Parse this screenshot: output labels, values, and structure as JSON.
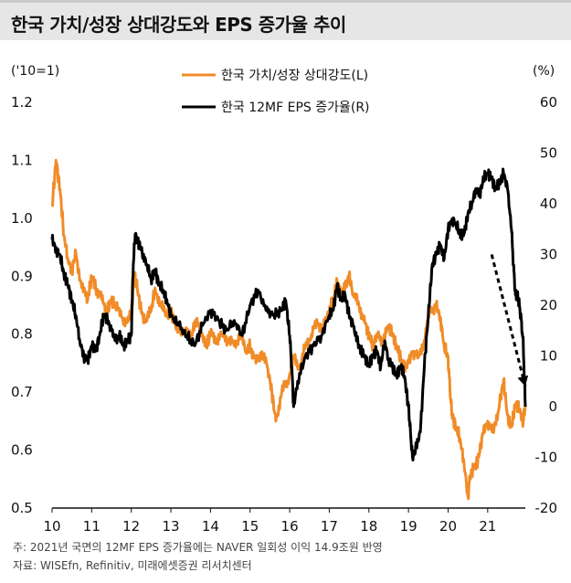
{
  "header": {
    "title": "한국 가치/성장 상대강도와 EPS 증가율 추이"
  },
  "units": {
    "left": "('10=1)",
    "right": "(%)"
  },
  "footnotes": {
    "note": "주: 2021년 국면의 12MF EPS 증가율에는 NAVER 일회성 이익 14.9조원 반영",
    "source": "자료: WISEfn, Refinitiv, 미래에셋증권 리서치센터"
  },
  "chart_data": {
    "type": "line",
    "title": "한국 가치/성장 상대강도와 EPS 증가율 추이",
    "x_tick_labels": [
      "10",
      "11",
      "12",
      "13",
      "14",
      "15",
      "16",
      "17",
      "18",
      "19",
      "20",
      "21"
    ],
    "x_range": [
      2010.0,
      2021.95
    ],
    "y_left": {
      "label": "('10=1)",
      "range": [
        0.5,
        1.2
      ],
      "ticks": [
        "1.2",
        "1.1",
        "1.0",
        "0.9",
        "0.8",
        "0.7",
        "0.6",
        "0.5"
      ]
    },
    "y_right": {
      "label": "(%)",
      "range": [
        -20,
        60
      ],
      "ticks": [
        "60",
        "50",
        "40",
        "30",
        "20",
        "10",
        "0",
        "-10",
        "-20"
      ]
    },
    "colors": {
      "value_growth": "#f08c28",
      "eps_growth": "#000000",
      "arrow": "#000000"
    },
    "series": [
      {
        "name": "한국 가치/성장 상대강도(L)",
        "axis": "left",
        "x": [
          2010.0,
          2010.1,
          2010.2,
          2010.3,
          2010.4,
          2010.5,
          2010.6,
          2010.75,
          2010.9,
          2011.0,
          2011.1,
          2011.25,
          2011.4,
          2011.5,
          2011.6,
          2011.75,
          2011.9,
          2012.0,
          2012.08,
          2012.15,
          2012.25,
          2012.35,
          2012.5,
          2012.6,
          2012.75,
          2012.9,
          2013.0,
          2013.1,
          2013.25,
          2013.4,
          2013.5,
          2013.6,
          2013.75,
          2013.9,
          2014.0,
          2014.15,
          2014.3,
          2014.45,
          2014.6,
          2014.75,
          2014.9,
          2015.0,
          2015.15,
          2015.3,
          2015.45,
          2015.55,
          2015.65,
          2015.8,
          2015.95,
          2016.1,
          2016.25,
          2016.4,
          2016.55,
          2016.7,
          2016.85,
          2017.0,
          2017.1,
          2017.2,
          2017.3,
          2017.4,
          2017.5,
          2017.6,
          2017.75,
          2017.9,
          2018.0,
          2018.1,
          2018.2,
          2018.35,
          2018.5,
          2018.6,
          2018.7,
          2018.8,
          2018.9,
          2019.0,
          2019.1,
          2019.25,
          2019.4,
          2019.55,
          2019.7,
          2019.8,
          2019.9,
          2020.0,
          2020.05,
          2020.1,
          2020.2,
          2020.3,
          2020.4,
          2020.5,
          2020.55,
          2020.65,
          2020.75,
          2020.85,
          2021.0,
          2021.15,
          2021.3,
          2021.4,
          2021.5,
          2021.6,
          2021.7,
          2021.8,
          2021.9,
          2021.95
        ],
        "values": [
          1.02,
          1.1,
          1.05,
          0.97,
          0.93,
          0.91,
          0.94,
          0.88,
          0.86,
          0.9,
          0.88,
          0.86,
          0.84,
          0.86,
          0.85,
          0.83,
          0.82,
          0.84,
          0.9,
          0.88,
          0.84,
          0.82,
          0.84,
          0.88,
          0.85,
          0.83,
          0.84,
          0.82,
          0.8,
          0.81,
          0.79,
          0.82,
          0.81,
          0.78,
          0.8,
          0.79,
          0.8,
          0.79,
          0.78,
          0.8,
          0.77,
          0.78,
          0.75,
          0.77,
          0.74,
          0.7,
          0.65,
          0.7,
          0.72,
          0.76,
          0.74,
          0.78,
          0.8,
          0.82,
          0.81,
          0.84,
          0.86,
          0.89,
          0.87,
          0.88,
          0.9,
          0.87,
          0.85,
          0.82,
          0.8,
          0.78,
          0.8,
          0.79,
          0.81,
          0.8,
          0.78,
          0.76,
          0.74,
          0.75,
          0.77,
          0.76,
          0.79,
          0.84,
          0.85,
          0.83,
          0.78,
          0.76,
          0.7,
          0.66,
          0.64,
          0.62,
          0.58,
          0.52,
          0.55,
          0.57,
          0.58,
          0.62,
          0.65,
          0.63,
          0.68,
          0.72,
          0.66,
          0.64,
          0.68,
          0.67,
          0.65,
          0.68
        ]
      },
      {
        "name": "한국 12MF EPS 증가율(R)",
        "axis": "right",
        "x": [
          2010.0,
          2010.1,
          2010.2,
          2010.3,
          2010.4,
          2010.5,
          2010.6,
          2010.7,
          2010.8,
          2010.9,
          2011.0,
          2011.1,
          2011.2,
          2011.3,
          2011.4,
          2011.5,
          2011.6,
          2011.7,
          2011.8,
          2011.9,
          2012.0,
          2012.05,
          2012.1,
          2012.2,
          2012.3,
          2012.4,
          2012.5,
          2012.6,
          2012.7,
          2012.8,
          2012.9,
          2013.0,
          2013.2,
          2013.4,
          2013.6,
          2013.8,
          2014.0,
          2014.2,
          2014.4,
          2014.6,
          2014.8,
          2015.0,
          2015.2,
          2015.4,
          2015.6,
          2015.8,
          2015.9,
          2016.0,
          2016.05,
          2016.1,
          2016.2,
          2016.4,
          2016.6,
          2016.8,
          2017.0,
          2017.1,
          2017.2,
          2017.3,
          2017.4,
          2017.5,
          2017.6,
          2017.7,
          2017.8,
          2017.9,
          2018.0,
          2018.1,
          2018.2,
          2018.3,
          2018.4,
          2018.5,
          2018.6,
          2018.7,
          2018.8,
          2018.9,
          2019.0,
          2019.05,
          2019.1,
          2019.2,
          2019.3,
          2019.4,
          2019.5,
          2019.6,
          2019.7,
          2019.8,
          2019.9,
          2020.0,
          2020.1,
          2020.2,
          2020.3,
          2020.4,
          2020.5,
          2020.6,
          2020.7,
          2020.8,
          2020.9,
          2021.0,
          2021.1,
          2021.2,
          2021.3,
          2021.4,
          2021.5,
          2021.6,
          2021.65,
          2021.7,
          2021.75,
          2021.8,
          2021.85,
          2021.9,
          2021.95
        ],
        "values": [
          33,
          31,
          30,
          26,
          24,
          21,
          18,
          13,
          10,
          9,
          12,
          11,
          14,
          18,
          17,
          15,
          13,
          14,
          12,
          13,
          14,
          28,
          34,
          32,
          30,
          28,
          25,
          27,
          24,
          23,
          21,
          18,
          16,
          14,
          12,
          16,
          19,
          17,
          15,
          17,
          14,
          20,
          23,
          19,
          18,
          19,
          21,
          14,
          8,
          0,
          5,
          10,
          12,
          14,
          18,
          19,
          24,
          21,
          22,
          18,
          16,
          13,
          11,
          10,
          8,
          10,
          11,
          8,
          13,
          9,
          8,
          6,
          8,
          6,
          0,
          -5,
          -10,
          -8,
          -5,
          8,
          18,
          28,
          30,
          32,
          29,
          35,
          37,
          36,
          34,
          34,
          38,
          40,
          43,
          42,
          45,
          46,
          45,
          43,
          44,
          46,
          43,
          35,
          28,
          22,
          22,
          20,
          17,
          12,
          0
        ]
      }
    ],
    "legend": [
      "한국 가치/성장 상대강도(L)",
      "한국 12MF EPS 증가율(R)"
    ],
    "annotation": {
      "type": "dashed-arrow",
      "from": [
        2021.1,
        30
      ],
      "to": [
        2021.95,
        4
      ]
    }
  }
}
